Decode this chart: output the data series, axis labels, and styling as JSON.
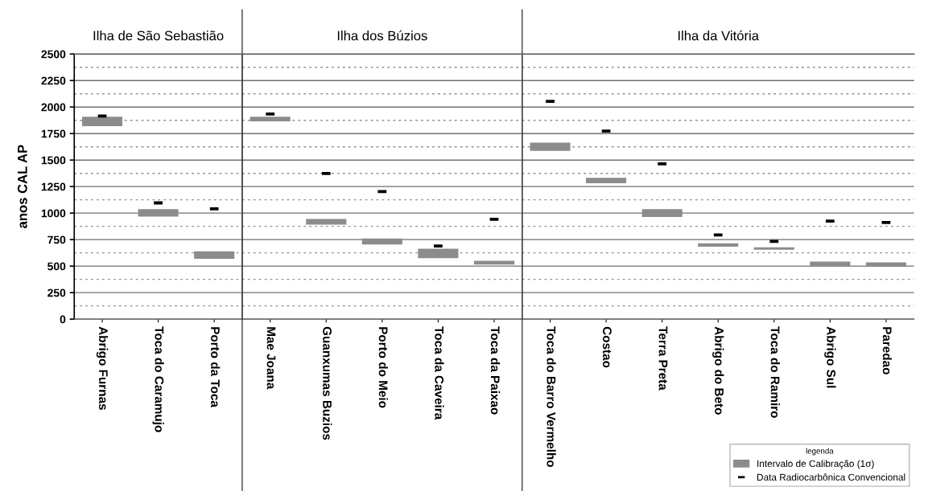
{
  "chart_data": [
    {
      "type": "bar",
      "title": "Ilha de São Sebastião",
      "ylabel": "anos CAL AP",
      "categories": [
        "Abrigo Furnas",
        "Toca do Caramujo",
        "Porto da Toca"
      ],
      "series": [
        {
          "color": "#8c8c8c",
          "base": [
            1820,
            967,
            569
          ],
          "values": [
            89,
            71,
            71
          ]
        },
        {
          "type": "scatter",
          "color": "#000000",
          "values": [
            1915,
            1096,
            1041
          ]
        }
      ],
      "ylim": [
        0,
        2500
      ],
      "yticks": [
        0,
        {
          "value": 125,
          "label": null
        },
        250,
        {
          "value": 375,
          "label": null
        },
        500,
        {
          "value": 625,
          "label": null
        },
        750,
        {
          "value": 875,
          "label": null
        },
        1000,
        {
          "value": 1125,
          "label": null
        },
        1250,
        {
          "value": 1375,
          "label": null
        },
        1500,
        {
          "value": 1625,
          "label": null
        },
        1750,
        {
          "value": 1875,
          "label": null
        },
        2000,
        {
          "value": 2125,
          "label": null
        },
        2250,
        {
          "value": 2375,
          "label": null
        },
        2500
      ],
      "grid": "y"
    },
    {
      "type": "bar",
      "title": "Ilha dos Búzios",
      "categories": [
        "Mae Joana",
        "Guanxumas Buzios",
        "Porto do Meio",
        "Toca da Caveira",
        "Toca da Paixao"
      ],
      "series": [
        {
          "color": "#8c8c8c",
          "base": [
            1865,
            891,
            703,
            576,
            515
          ],
          "values": [
            44,
            53,
            58,
            89,
            36
          ]
        },
        {
          "type": "scatter",
          "color": "#000000",
          "values": [
            1934,
            1373,
            1203,
            690,
            942
          ]
        }
      ],
      "ylim": [
        0,
        2500
      ],
      "yticks": [
        0,
        {
          "value": 125,
          "label": null
        },
        250,
        {
          "value": 375,
          "label": null
        },
        500,
        {
          "value": 625,
          "label": null
        },
        750,
        {
          "value": 875,
          "label": null
        },
        1000,
        {
          "value": 1125,
          "label": null
        },
        1250,
        {
          "value": 1375,
          "label": null
        },
        1500,
        {
          "value": 1625,
          "label": null
        },
        1750,
        {
          "value": 1875,
          "label": null
        },
        2000,
        {
          "value": 2125,
          "label": null
        },
        2250,
        {
          "value": 2375,
          "label": null
        },
        2500
      ],
      "grid": "y",
      "tick_labels": "x"
    },
    {
      "type": "bar",
      "title": "Ilha da Vitória",
      "categories": [
        "Toca do Barro Vermelho",
        "Costao",
        "Terra Preta",
        "Abrigo do Beto",
        "Toca do Ramiro",
        "Abrigo Sul",
        "Paredao"
      ],
      "series": [
        {
          "name": "Intervalo de Calibração (1σ)",
          "color": "#8c8c8c",
          "base": [
            1586,
            1282,
            964,
            683,
            655,
            500,
            495
          ],
          "values": [
            79,
            50,
            74,
            33,
            23,
            43,
            41
          ]
        },
        {
          "name": "Data Radiocarbônica Convencional",
          "type": "scatter",
          "color": "#000000",
          "values": [
            2053,
            1774,
            1464,
            794,
            733,
            924,
            911
          ]
        }
      ],
      "ylim": [
        0,
        2500
      ],
      "yticks": [
        0,
        {
          "value": 125,
          "label": null
        },
        250,
        {
          "value": 375,
          "label": null
        },
        500,
        {
          "value": 625,
          "label": null
        },
        750,
        {
          "value": 875,
          "label": null
        },
        1000,
        {
          "value": 1125,
          "label": null
        },
        1250,
        {
          "value": 1375,
          "label": null
        },
        1500,
        {
          "value": 1625,
          "label": null
        },
        1750,
        {
          "value": 1875,
          "label": null
        },
        2000,
        {
          "value": 2125,
          "label": null
        },
        2250,
        {
          "value": 2375,
          "label": null
        },
        2500
      ],
      "grid": "y",
      "tick_labels": "x",
      "legend": "bottom right",
      "legend_title": "legenda"
    }
  ]
}
